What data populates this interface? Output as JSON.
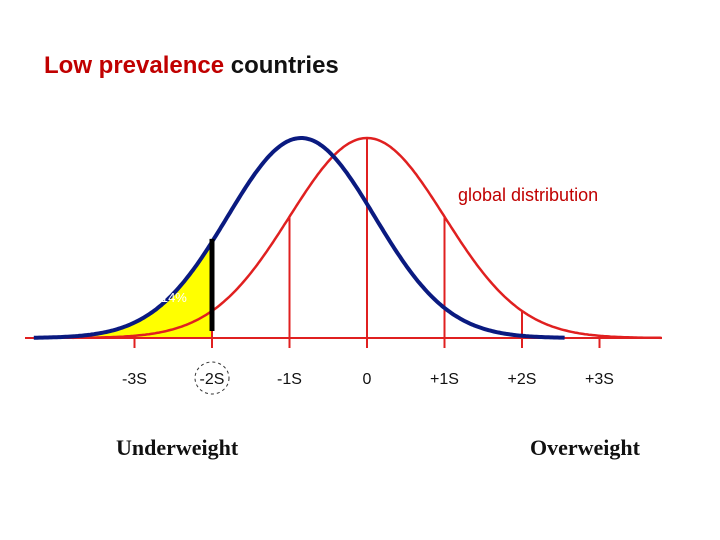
{
  "title": {
    "accent": "Low prevalence",
    "rest": " countries"
  },
  "chart_data": {
    "type": "line",
    "x_ticks": [
      "-3S",
      "-2S",
      "-1S",
      "0",
      "+1S",
      "+2S",
      "+3S"
    ],
    "x_tick_values": [
      -3,
      -2,
      -1,
      0,
      1,
      2,
      3
    ],
    "xlim": [
      -3.5,
      3.8
    ],
    "series": [
      {
        "name": "global distribution",
        "mean": 0,
        "sd": 1,
        "color": "#e02020"
      },
      {
        "mean": -0.85,
        "sd": 0.95,
        "color": "#0a1a80"
      }
    ],
    "shaded_region": {
      "below": -2,
      "color": "#ffff00",
      "label": "2.14%"
    },
    "cutoff": {
      "x": -2,
      "color": "#000000"
    },
    "highlighted_tick": "-2S",
    "x_extremes": {
      "left": "Underweight",
      "right": "Overweight"
    }
  },
  "colors": {
    "accent": "#c00000",
    "red_curve": "#e02020",
    "blue_curve": "#0a1a80",
    "shade": "#ffff00"
  }
}
